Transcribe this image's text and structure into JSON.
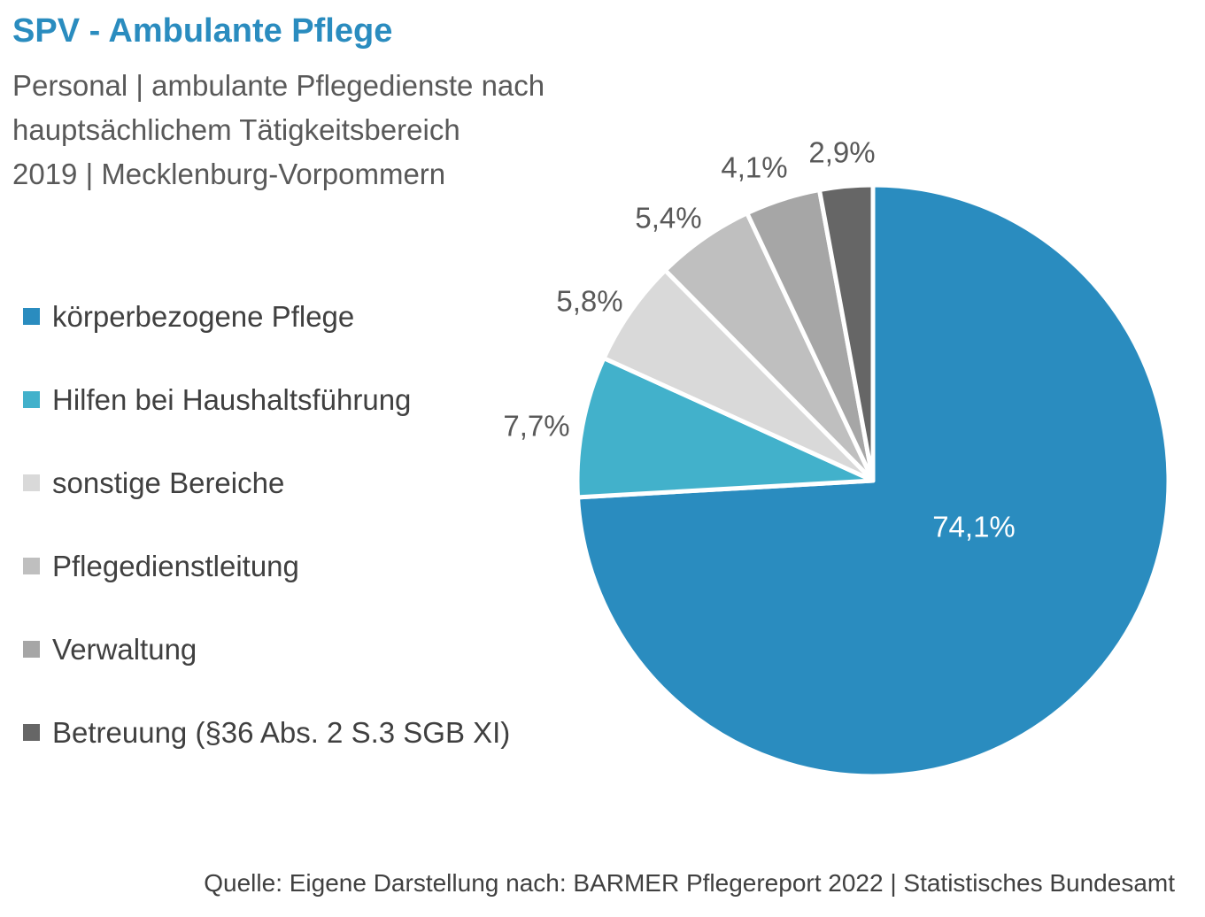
{
  "title": "SPV - Ambulante Pflege",
  "subtitle_lines": [
    "Personal | ambulante Pflegedienste nach",
    "hauptsächlichem Tätigkeitsbereich",
    "2019 | Mecklenburg-Vorpommern"
  ],
  "source": "Quelle: Eigene Darstellung nach: BARMER Pflegereport 2022 | Statistisches Bundesamt",
  "chart_data": {
    "type": "pie",
    "title": "SPV - Ambulante Pflege",
    "unit": "%",
    "legend_position": "left",
    "slices": [
      {
        "name": "körperbezogene Pflege",
        "value": 74.1,
        "label": "74,1%",
        "color": "#2a8cbf"
      },
      {
        "name": "Hilfen bei Haushaltsführung",
        "value": 7.7,
        "label": "7,7%",
        "color": "#42b1cb"
      },
      {
        "name": "sonstige Bereiche",
        "value": 5.8,
        "label": "5,8%",
        "color": "#d9d9d9"
      },
      {
        "name": "Pflegedienstleitung",
        "value": 5.4,
        "label": "5,4%",
        "color": "#bfbfbf"
      },
      {
        "name": "Verwaltung",
        "value": 4.1,
        "label": "4,1%",
        "color": "#a6a6a6"
      },
      {
        "name": "Betreuung (§36 Abs. 2 S.3 SGB XI)",
        "value": 2.9,
        "label": "2,9%",
        "color": "#666666"
      }
    ]
  }
}
